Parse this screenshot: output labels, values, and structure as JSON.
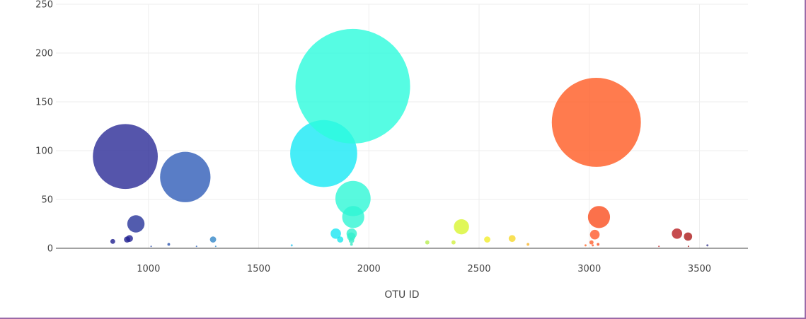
{
  "chart_data": {
    "type": "scatter",
    "subtype": "bubble",
    "xlabel": "OTU ID",
    "ylabel": "",
    "xlim": [
      580,
      3720
    ],
    "ylim": [
      0,
      250
    ],
    "x_ticks": [
      1000,
      1500,
      2000,
      2500,
      3000,
      3500
    ],
    "y_ticks": [
      0,
      50,
      100,
      150,
      200,
      250
    ],
    "grid": true,
    "colorscale": "Jet",
    "points": [
      {
        "x": 838,
        "y": 7,
        "size": 7,
        "color": "#1f1f8f"
      },
      {
        "x": 895,
        "y": 94,
        "size": 94,
        "color": "#2a2a96"
      },
      {
        "x": 903,
        "y": 9,
        "size": 9,
        "color": "#1f1f8f"
      },
      {
        "x": 914,
        "y": 10,
        "size": 10,
        "color": "#232394"
      },
      {
        "x": 943,
        "y": 25,
        "size": 25,
        "color": "#27339a"
      },
      {
        "x": 1012,
        "y": 2,
        "size": 2,
        "color": "#2a4aa8"
      },
      {
        "x": 1092,
        "y": 4,
        "size": 4,
        "color": "#2d55ae"
      },
      {
        "x": 1167,
        "y": 73,
        "size": 73,
        "color": "#2f5cb8"
      },
      {
        "x": 1218,
        "y": 2,
        "size": 2,
        "color": "#3268be"
      },
      {
        "x": 1293,
        "y": 9,
        "size": 9,
        "color": "#3487c8"
      },
      {
        "x": 1305,
        "y": 2,
        "size": 2,
        "color": "#3690cc"
      },
      {
        "x": 1650,
        "y": 3,
        "size": 3,
        "color": "#38c8f0"
      },
      {
        "x": 1795,
        "y": 97,
        "size": 97,
        "color": "#18e8f5"
      },
      {
        "x": 1850,
        "y": 15,
        "size": 15,
        "color": "#1ae6f2"
      },
      {
        "x": 1870,
        "y": 9,
        "size": 9,
        "color": "#1de9ee"
      },
      {
        "x": 1927,
        "y": 166,
        "size": 166,
        "color": "#2cfbdc"
      },
      {
        "x": 1928,
        "y": 51,
        "size": 51,
        "color": "#2ef8d6"
      },
      {
        "x": 1929,
        "y": 32,
        "size": 32,
        "color": "#30f5d3"
      },
      {
        "x": 1922,
        "y": 15,
        "size": 15,
        "color": "#32f2d0"
      },
      {
        "x": 1920,
        "y": 12,
        "size": 12,
        "color": "#34efcc"
      },
      {
        "x": 1921,
        "y": 8,
        "size": 8,
        "color": "#36ecc8"
      },
      {
        "x": 1921,
        "y": 4,
        "size": 4,
        "color": "#38e9c4"
      },
      {
        "x": 2265,
        "y": 6,
        "size": 6,
        "color": "#b6ee50"
      },
      {
        "x": 2384,
        "y": 6,
        "size": 6,
        "color": "#d2f040"
      },
      {
        "x": 2420,
        "y": 22,
        "size": 22,
        "color": "#d8f530"
      },
      {
        "x": 2537,
        "y": 9,
        "size": 9,
        "color": "#f2ee2a"
      },
      {
        "x": 2650,
        "y": 10,
        "size": 10,
        "color": "#f6d82a"
      },
      {
        "x": 2722,
        "y": 4,
        "size": 4,
        "color": "#f9b42c"
      },
      {
        "x": 2983,
        "y": 3,
        "size": 3,
        "color": "#ff6a2e"
      },
      {
        "x": 3010,
        "y": 6,
        "size": 6,
        "color": "#ff6230"
      },
      {
        "x": 3016,
        "y": 3,
        "size": 3,
        "color": "#ff5c30"
      },
      {
        "x": 3025,
        "y": 14,
        "size": 14,
        "color": "#ff5a2c"
      },
      {
        "x": 3032,
        "y": 129,
        "size": 129,
        "color": "#ff5a22"
      },
      {
        "x": 3040,
        "y": 4,
        "size": 4,
        "color": "#fa5022"
      },
      {
        "x": 3044,
        "y": 32,
        "size": 32,
        "color": "#fa4e1e"
      },
      {
        "x": 3316,
        "y": 2,
        "size": 2,
        "color": "#c02a2a"
      },
      {
        "x": 3398,
        "y": 15,
        "size": 15,
        "color": "#b81e22"
      },
      {
        "x": 3448,
        "y": 12,
        "size": 12,
        "color": "#ad1a1a"
      },
      {
        "x": 3450,
        "y": 2,
        "size": 2,
        "color": "#a51818"
      },
      {
        "x": 3536,
        "y": 3,
        "size": 3,
        "color": "#3f3f90"
      }
    ]
  }
}
